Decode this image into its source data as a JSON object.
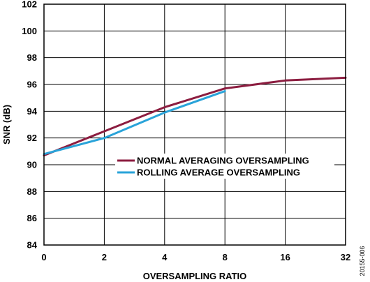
{
  "chart_data": {
    "type": "line",
    "xlabel": "OVERSAMPLING RATIO",
    "ylabel": "SNR (dB)",
    "x_categories": [
      "0",
      "2",
      "4",
      "8",
      "16",
      "32"
    ],
    "y_ticks": [
      "84",
      "86",
      "88",
      "90",
      "92",
      "94",
      "96",
      "98",
      "100",
      "102"
    ],
    "ylim": [
      84,
      102
    ],
    "grid": true,
    "legend_position": "center-right",
    "series": [
      {
        "name": "NORMAL AVERAGING OVERSAMPLING",
        "color": "#8c1d40",
        "x": [
          0,
          1,
          2,
          3,
          4,
          5
        ],
        "values": [
          90.7,
          92.5,
          94.3,
          95.7,
          96.3,
          96.5
        ]
      },
      {
        "name": "ROLLING AVERAGE OVERSAMPLING",
        "color": "#29a3d9",
        "x": [
          0,
          1,
          2,
          3
        ],
        "values": [
          90.8,
          92.0,
          93.9,
          95.5
        ]
      }
    ],
    "figure_id": "20155-006"
  }
}
